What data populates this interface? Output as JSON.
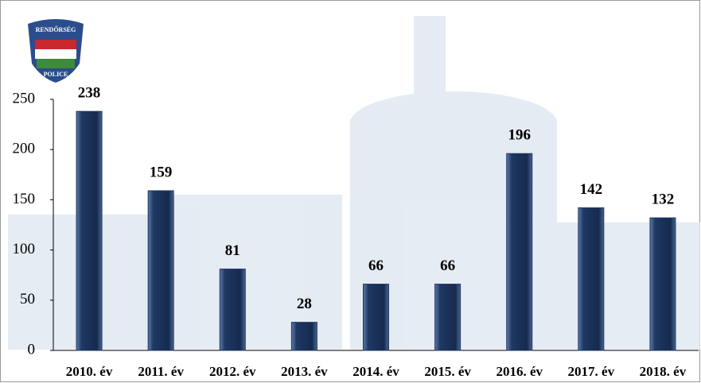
{
  "logo": {
    "top": "RENDŐRSÉG",
    "bottom": "POLICE"
  },
  "chart_data": {
    "type": "bar",
    "categories": [
      "2010. év",
      "2011. év",
      "2012. év",
      "2013. év",
      "2014. év",
      "2015. év",
      "2016. év",
      "2017. év",
      "2018. év"
    ],
    "values": [
      238,
      159,
      81,
      28,
      66,
      66,
      196,
      142,
      132
    ],
    "color": "#1f3864",
    "ylim": [
      0,
      250
    ],
    "yticks": [
      0,
      50,
      100,
      150,
      200,
      250
    ],
    "grid": false
  }
}
